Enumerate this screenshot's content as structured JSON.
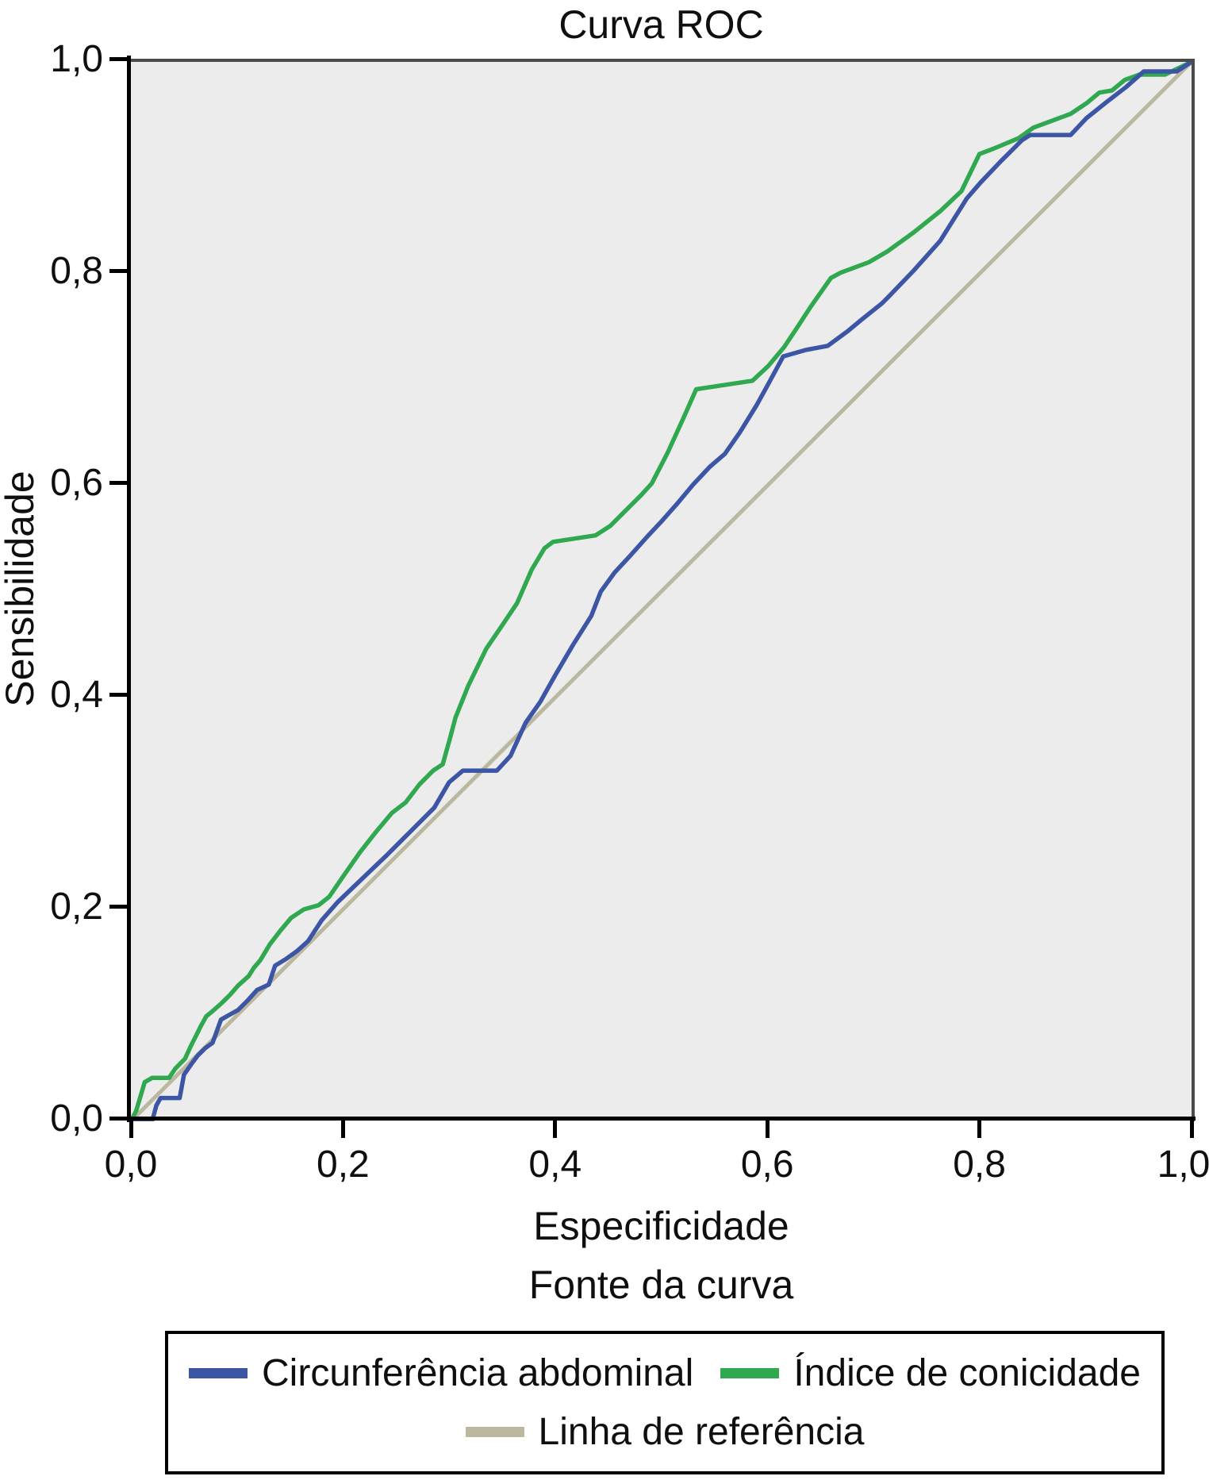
{
  "chart": {
    "title": "Curva ROC",
    "x_axis": {
      "label": "Especificidade"
    },
    "y_axis": {
      "label": "Sensibilidade"
    }
  },
  "legend": {
    "title": "Fonte da curva",
    "items": [
      {
        "name": "circunferencia-abdominal",
        "label": "Circunferência abdominal",
        "color": "#3d55a5"
      },
      {
        "name": "indice-de-conicidade",
        "label": "Índice de conicidade",
        "color": "#2fa84f"
      },
      {
        "name": "linha-de-referencia",
        "label": "Linha de referência",
        "color": "#bcb89e"
      }
    ]
  },
  "colors": {
    "plot_background": "#ececec",
    "frame": "#4b4b4b",
    "axis": "#000000",
    "blue_series": "#3d55a5",
    "green_series": "#2fa84f",
    "reference_line": "#bcb89e"
  },
  "chart_data": {
    "type": "line",
    "title": "Curva ROC",
    "xlabel": "Especificidade",
    "ylabel": "Sensibilidade",
    "xlim": [
      0,
      1
    ],
    "ylim": [
      0,
      1
    ],
    "grid": false,
    "legend_position": "bottom",
    "x_ticks": [
      0,
      0.2,
      0.4,
      0.6,
      0.8,
      1.0
    ],
    "y_ticks": [
      0,
      0.2,
      0.4,
      0.6,
      0.8,
      1.0
    ],
    "tick_labels": [
      "0,0",
      "0,2",
      "0,4",
      "0,6",
      "0,8",
      "1,0"
    ],
    "series": [
      {
        "name": "Linha de referência",
        "color": "#bcb89e",
        "width": 5,
        "points": [
          [
            0,
            0
          ],
          [
            1,
            1
          ]
        ]
      },
      {
        "name": "Índice de conicidade",
        "color": "#2fa84f",
        "width": 5.5,
        "points": [
          [
            0.0,
            0.0
          ],
          [
            0.005,
            0.01
          ],
          [
            0.013,
            0.037
          ],
          [
            0.02,
            0.041
          ],
          [
            0.036,
            0.041
          ],
          [
            0.042,
            0.05
          ],
          [
            0.051,
            0.059
          ],
          [
            0.056,
            0.07
          ],
          [
            0.061,
            0.08
          ],
          [
            0.066,
            0.09
          ],
          [
            0.071,
            0.099
          ],
          [
            0.077,
            0.104
          ],
          [
            0.086,
            0.112
          ],
          [
            0.094,
            0.12
          ],
          [
            0.101,
            0.128
          ],
          [
            0.111,
            0.137
          ],
          [
            0.116,
            0.145
          ],
          [
            0.122,
            0.152
          ],
          [
            0.131,
            0.167
          ],
          [
            0.141,
            0.18
          ],
          [
            0.151,
            0.192
          ],
          [
            0.163,
            0.2
          ],
          [
            0.177,
            0.204
          ],
          [
            0.187,
            0.212
          ],
          [
            0.2,
            0.231
          ],
          [
            0.216,
            0.254
          ],
          [
            0.231,
            0.273
          ],
          [
            0.246,
            0.291
          ],
          [
            0.259,
            0.301
          ],
          [
            0.272,
            0.318
          ],
          [
            0.285,
            0.331
          ],
          [
            0.294,
            0.337
          ],
          [
            0.301,
            0.362
          ],
          [
            0.306,
            0.381
          ],
          [
            0.318,
            0.411
          ],
          [
            0.335,
            0.446
          ],
          [
            0.35,
            0.468
          ],
          [
            0.364,
            0.489
          ],
          [
            0.378,
            0.521
          ],
          [
            0.39,
            0.541
          ],
          [
            0.398,
            0.547
          ],
          [
            0.438,
            0.553
          ],
          [
            0.452,
            0.562
          ],
          [
            0.466,
            0.576
          ],
          [
            0.481,
            0.591
          ],
          [
            0.491,
            0.602
          ],
          [
            0.506,
            0.631
          ],
          [
            0.521,
            0.664
          ],
          [
            0.533,
            0.691
          ],
          [
            0.586,
            0.699
          ],
          [
            0.601,
            0.713
          ],
          [
            0.616,
            0.731
          ],
          [
            0.628,
            0.749
          ],
          [
            0.641,
            0.769
          ],
          [
            0.66,
            0.796
          ],
          [
            0.669,
            0.801
          ],
          [
            0.696,
            0.811
          ],
          [
            0.713,
            0.821
          ],
          [
            0.738,
            0.839
          ],
          [
            0.763,
            0.859
          ],
          [
            0.783,
            0.878
          ],
          [
            0.8,
            0.913
          ],
          [
            0.813,
            0.918
          ],
          [
            0.837,
            0.928
          ],
          [
            0.851,
            0.938
          ],
          [
            0.886,
            0.951
          ],
          [
            0.901,
            0.961
          ],
          [
            0.913,
            0.971
          ],
          [
            0.925,
            0.973
          ],
          [
            0.937,
            0.983
          ],
          [
            0.951,
            0.988
          ],
          [
            0.975,
            0.988
          ],
          [
            1.0,
            1.0
          ]
        ]
      },
      {
        "name": "Circunferência abdominal",
        "color": "#3d55a5",
        "width": 5.5,
        "points": [
          [
            0.0,
            0.0
          ],
          [
            0.02,
            0.0
          ],
          [
            0.024,
            0.015
          ],
          [
            0.028,
            0.022
          ],
          [
            0.046,
            0.022
          ],
          [
            0.05,
            0.044
          ],
          [
            0.057,
            0.054
          ],
          [
            0.063,
            0.062
          ],
          [
            0.07,
            0.069
          ],
          [
            0.077,
            0.074
          ],
          [
            0.085,
            0.096
          ],
          [
            0.092,
            0.1
          ],
          [
            0.101,
            0.105
          ],
          [
            0.11,
            0.114
          ],
          [
            0.119,
            0.124
          ],
          [
            0.13,
            0.129
          ],
          [
            0.136,
            0.147
          ],
          [
            0.146,
            0.153
          ],
          [
            0.157,
            0.161
          ],
          [
            0.167,
            0.17
          ],
          [
            0.18,
            0.19
          ],
          [
            0.195,
            0.207
          ],
          [
            0.217,
            0.228
          ],
          [
            0.24,
            0.25
          ],
          [
            0.262,
            0.272
          ],
          [
            0.286,
            0.296
          ],
          [
            0.3,
            0.32
          ],
          [
            0.313,
            0.331
          ],
          [
            0.345,
            0.331
          ],
          [
            0.358,
            0.345
          ],
          [
            0.372,
            0.376
          ],
          [
            0.386,
            0.396
          ],
          [
            0.4,
            0.421
          ],
          [
            0.417,
            0.45
          ],
          [
            0.434,
            0.477
          ],
          [
            0.443,
            0.5
          ],
          [
            0.456,
            0.518
          ],
          [
            0.47,
            0.533
          ],
          [
            0.486,
            0.551
          ],
          [
            0.5,
            0.566
          ],
          [
            0.515,
            0.583
          ],
          [
            0.53,
            0.601
          ],
          [
            0.546,
            0.618
          ],
          [
            0.56,
            0.63
          ],
          [
            0.574,
            0.65
          ],
          [
            0.59,
            0.676
          ],
          [
            0.601,
            0.696
          ],
          [
            0.615,
            0.722
          ],
          [
            0.636,
            0.728
          ],
          [
            0.657,
            0.732
          ],
          [
            0.676,
            0.746
          ],
          [
            0.688,
            0.756
          ],
          [
            0.708,
            0.772
          ],
          [
            0.714,
            0.778
          ],
          [
            0.738,
            0.803
          ],
          [
            0.763,
            0.831
          ],
          [
            0.788,
            0.871
          ],
          [
            0.801,
            0.886
          ],
          [
            0.82,
            0.906
          ],
          [
            0.84,
            0.926
          ],
          [
            0.848,
            0.931
          ],
          [
            0.886,
            0.931
          ],
          [
            0.901,
            0.947
          ],
          [
            0.921,
            0.963
          ],
          [
            0.938,
            0.976
          ],
          [
            0.955,
            0.991
          ],
          [
            0.986,
            0.991
          ],
          [
            1.0,
            1.0
          ]
        ]
      }
    ]
  }
}
